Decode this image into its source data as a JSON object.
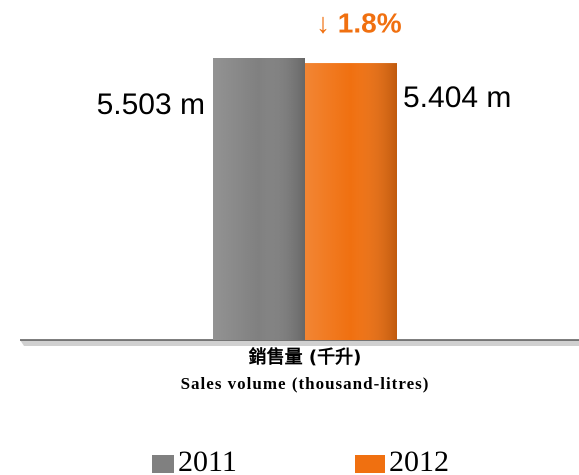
{
  "chart_data": {
    "type": "bar",
    "annotation": "↓ 1.8%",
    "categories": [
      [
        "銷售量 (千升)",
        "Sales volume (thousand-litres)"
      ]
    ],
    "series": [
      {
        "name": "2011",
        "color": "#808080",
        "values": [
          5.503
        ],
        "value_labels": [
          "5.503 m"
        ]
      },
      {
        "name": "2012",
        "color": "#f07010",
        "values": [
          5.404
        ],
        "value_labels": [
          "5.404 m"
        ]
      }
    ]
  }
}
